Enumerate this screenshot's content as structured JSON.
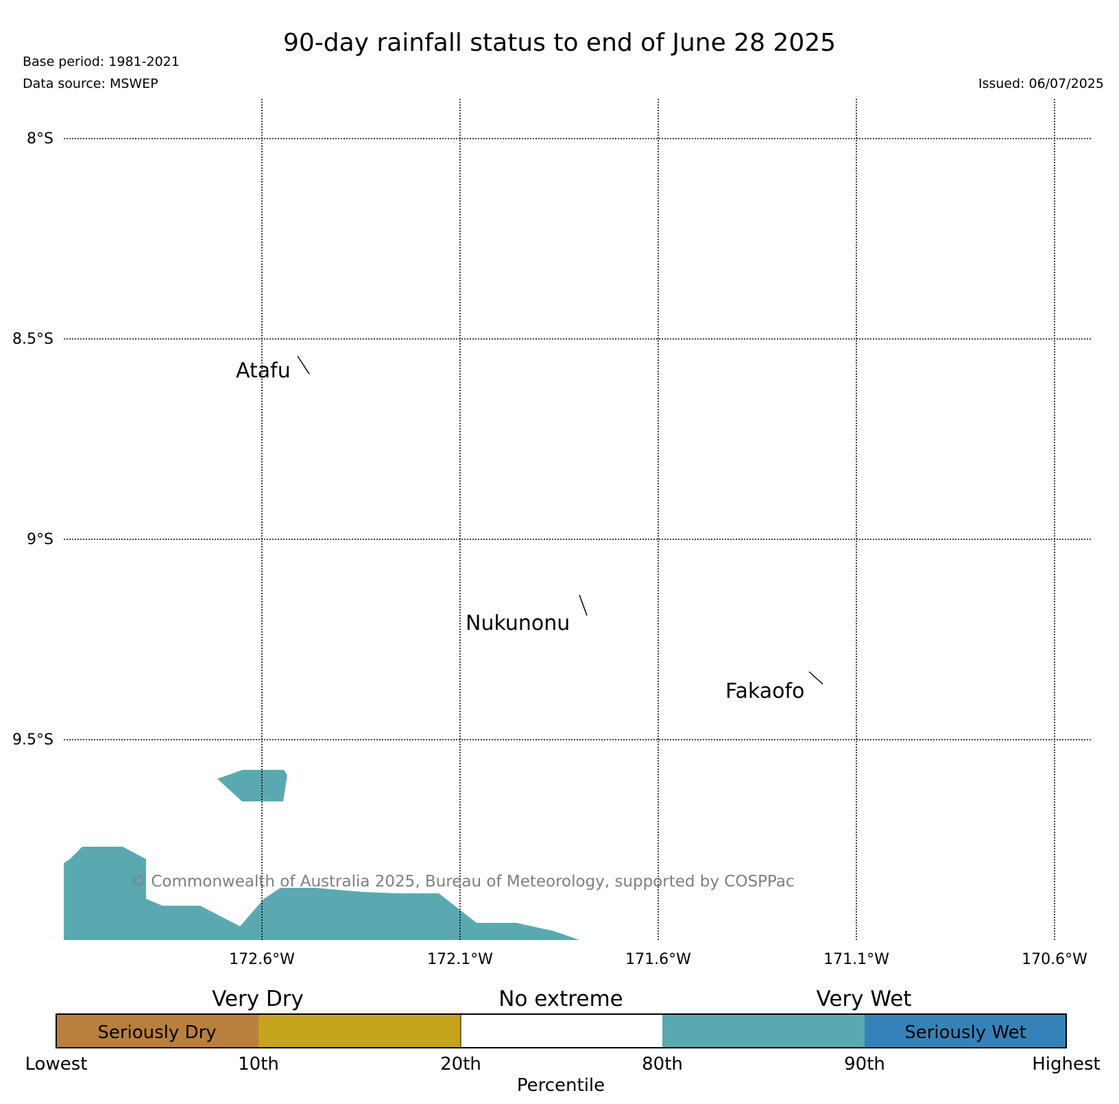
{
  "header": {
    "title": "90-day rainfall status to end of June 28 2025",
    "base_period": "Base period: 1981-2021",
    "data_source": "Data source: MSWEP",
    "issued": "Issued: 06/07/2025"
  },
  "map": {
    "lat_labels": [
      "8°S",
      "8.5°S",
      "9°S",
      "9.5°S"
    ],
    "lon_labels": [
      "172.6°W",
      "172.1°W",
      "171.6°W",
      "171.1°W",
      "170.6°W"
    ],
    "places": [
      "Atafu",
      "Nukunonu",
      "Fakaofo"
    ],
    "credit": "© Commonwealth of Australia 2025, Bureau of Meteorology, supported by COSPPac",
    "very_wet_fill": "#5ba9b0"
  },
  "legend": {
    "group_labels": [
      "Very Dry",
      "No extreme",
      "Very Wet"
    ],
    "seriously_dry": "Seriously Dry",
    "seriously_wet": "Seriously Wet",
    "ticks": [
      "Lowest",
      "10th",
      "20th",
      "80th",
      "90th",
      "Highest"
    ],
    "axis_label": "Percentile",
    "colors": {
      "seriously_dry": "#b97f3d",
      "very_dry": "#c5a41c",
      "no_extreme": "#ffffff",
      "very_wet": "#5ba9b0",
      "seriously_wet": "#3582b8"
    }
  }
}
